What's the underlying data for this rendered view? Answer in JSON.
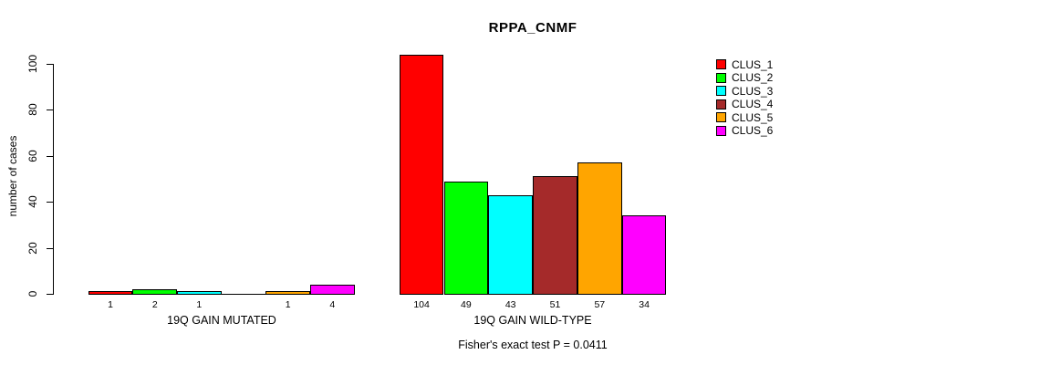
{
  "chart_data": {
    "type": "bar",
    "title": "RPPA_CNMF",
    "ylabel": "number of cases",
    "ylim": [
      0,
      100
    ],
    "yticks": [
      0,
      20,
      40,
      60,
      80,
      100
    ],
    "grid": false,
    "legend_position": "top-right",
    "series": [
      {
        "name": "CLUS_1",
        "color": "#FF0000"
      },
      {
        "name": "CLUS_2",
        "color": "#00FF00"
      },
      {
        "name": "CLUS_3",
        "color": "#00FFFF"
      },
      {
        "name": "CLUS_4",
        "color": "#A52A2A"
      },
      {
        "name": "CLUS_5",
        "color": "#FFA500"
      },
      {
        "name": "CLUS_6",
        "color": "#FF00FF"
      }
    ],
    "groups": [
      {
        "label": "19Q GAIN MUTATED",
        "values": [
          1,
          2,
          1,
          0,
          1,
          4
        ],
        "bar_labels": [
          "1",
          "2",
          "1",
          "",
          "1",
          "4"
        ]
      },
      {
        "label": "19Q GAIN WILD-TYPE",
        "values": [
          104,
          49,
          43,
          51,
          57,
          34
        ],
        "bar_labels": [
          "104",
          "49",
          "43",
          "51",
          "57",
          "34"
        ]
      }
    ],
    "annotation": "Fisher's exact test P = 0.0411"
  }
}
